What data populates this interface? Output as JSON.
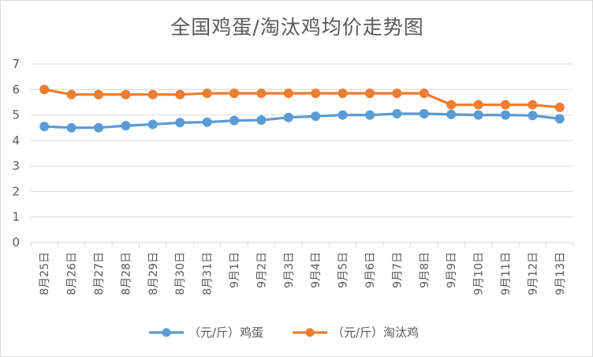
{
  "chart_data": {
    "type": "line",
    "title": "全国鸡蛋/淘汰鸡均价走势图",
    "categories": [
      "8月25日",
      "8月26日",
      "8月27日",
      "8月28日",
      "8月29日",
      "8月30日",
      "8月31日",
      "9月1日",
      "9月2日",
      "9月3日",
      "9月4日",
      "9月5日",
      "9月6日",
      "9月7日",
      "9月8日",
      "9月9日",
      "9月10日",
      "9月11日",
      "9月12日",
      "9月13日"
    ],
    "ylim": [
      0,
      7
    ],
    "yticks": [
      0,
      1,
      2,
      3,
      4,
      5,
      6,
      7
    ],
    "grid": true,
    "legend_position": "bottom",
    "series": [
      {
        "name": "（元/斤）鸡蛋",
        "color": "#5b9bd5",
        "values": [
          4.55,
          4.5,
          4.5,
          4.58,
          4.63,
          4.7,
          4.72,
          4.78,
          4.8,
          4.9,
          4.95,
          5.0,
          5.0,
          5.05,
          5.05,
          5.02,
          5.0,
          5.0,
          4.98,
          4.85
        ]
      },
      {
        "name": "（元/斤）淘汰鸡",
        "color": "#ed7d31",
        "values": [
          6.0,
          5.8,
          5.8,
          5.8,
          5.8,
          5.8,
          5.85,
          5.85,
          5.85,
          5.85,
          5.85,
          5.85,
          5.85,
          5.85,
          5.85,
          5.4,
          5.4,
          5.4,
          5.4,
          5.3
        ]
      }
    ]
  }
}
